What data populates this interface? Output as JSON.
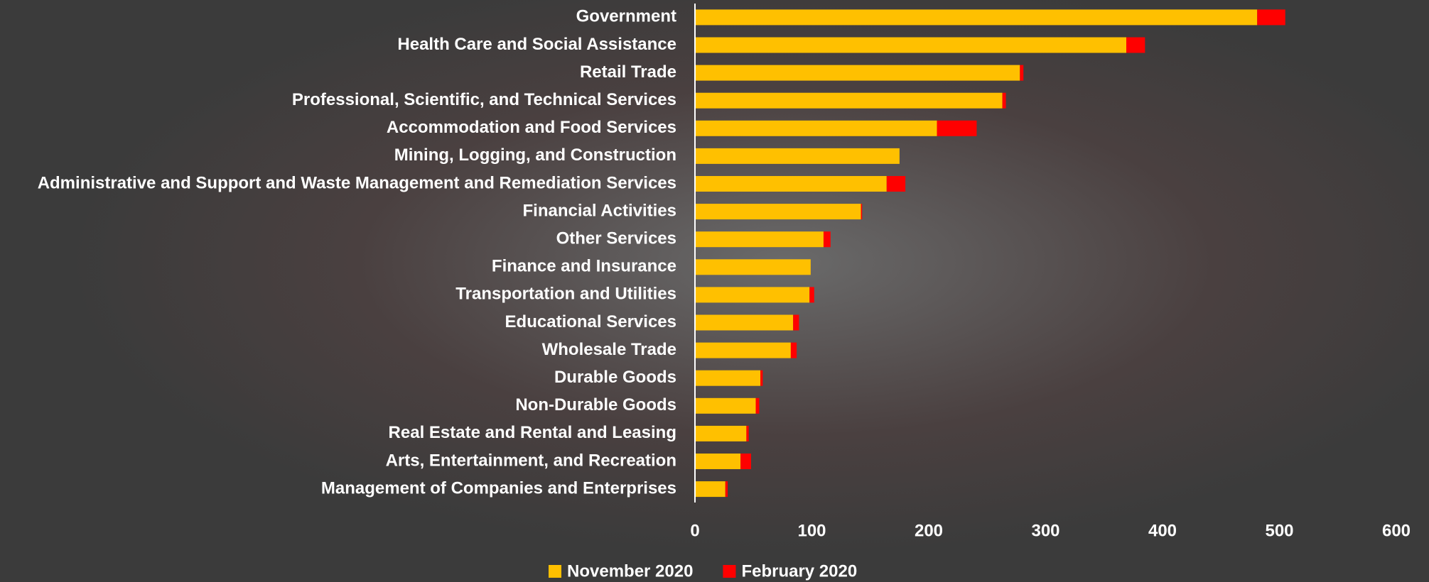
{
  "chart_data": {
    "type": "stacked-bar-horizontal",
    "categories": [
      "Government",
      "Health Care and Social Assistance",
      "Retail Trade",
      "Professional, Scientific, and Technical Services",
      "Accommodation and Food Services",
      "Mining, Logging, and Construction",
      "Administrative and Support and Waste Management and Remediation Services",
      "Financial Activities",
      "Other Services",
      "Finance and Insurance",
      "Transportation and Utilities",
      "Educational Services",
      "Wholesale Trade",
      "Durable Goods",
      "Non-Durable Goods",
      "Real Estate and Rental and Leasing",
      "Arts, Entertainment, and Recreation",
      "Management of Companies and Enterprises"
    ],
    "series": [
      {
        "name": "November 2020",
        "color": "#ffc000",
        "values": [
          481,
          369,
          278,
          263,
          207,
          175,
          164,
          142,
          110,
          99,
          98,
          84,
          82,
          56,
          52,
          44,
          39,
          26
        ]
      },
      {
        "name": "February 2020",
        "color": "#ff0000",
        "values": [
          24,
          16,
          3,
          3,
          34,
          0,
          16,
          1,
          6,
          0,
          4,
          5,
          5,
          2,
          3,
          2,
          9,
          2
        ]
      }
    ],
    "xlim": [
      0,
      600
    ],
    "xticks": [
      0,
      100,
      200,
      300,
      400,
      500,
      600
    ],
    "legend": "bottom"
  }
}
